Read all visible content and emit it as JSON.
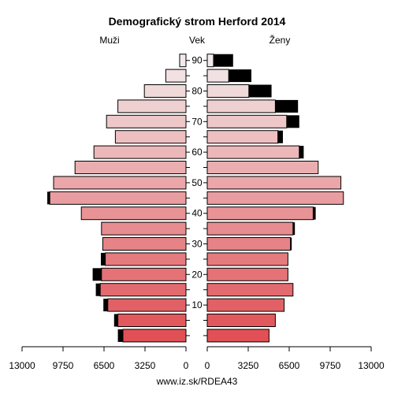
{
  "chart_data": {
    "type": "bar",
    "title": "Demografický strom Herford 2014",
    "left_label": "Muži",
    "center_label": "Vek",
    "right_label": "Ženy",
    "footer": "www.iz.sk/RDEA43",
    "age_ticks": [
      "10",
      "20",
      "30",
      "40",
      "50",
      "60",
      "70",
      "80",
      "90"
    ],
    "x_ticks_left": [
      "13000",
      "9750",
      "6500",
      "3250",
      "0"
    ],
    "x_ticks_right": [
      "0",
      "3250",
      "6500",
      "9750",
      "13000"
    ],
    "x_range": [
      0,
      13000
    ],
    "age_groups": [
      "0-4",
      "5-9",
      "10-14",
      "15-19",
      "20-24",
      "25-29",
      "30-34",
      "35-39",
      "40-44",
      "45-49",
      "50-54",
      "55-59",
      "60-64",
      "65-69",
      "70-74",
      "75-79",
      "80-84",
      "85-89",
      "90+"
    ],
    "series": [
      {
        "name": "Muži",
        "values": [
          5000,
          5400,
          6200,
          6800,
          6700,
          6400,
          6600,
          6700,
          8300,
          10800,
          10500,
          8800,
          7300,
          5600,
          6300,
          5400,
          3300,
          1600,
          500
        ],
        "surplus": [
          400,
          300,
          350,
          350,
          700,
          350,
          0,
          0,
          0,
          200,
          0,
          0,
          0,
          0,
          0,
          0,
          0,
          0,
          0
        ]
      },
      {
        "name": "Ženy",
        "values": [
          4900,
          5400,
          6100,
          6800,
          6400,
          6400,
          6600,
          6800,
          8400,
          10800,
          10600,
          8800,
          7300,
          5600,
          6300,
          5400,
          3300,
          1700,
          500
        ],
        "surplus": [
          0,
          0,
          0,
          0,
          0,
          0,
          100,
          150,
          200,
          0,
          0,
          0,
          350,
          400,
          1000,
          1800,
          1800,
          1800,
          1550
        ]
      }
    ]
  }
}
